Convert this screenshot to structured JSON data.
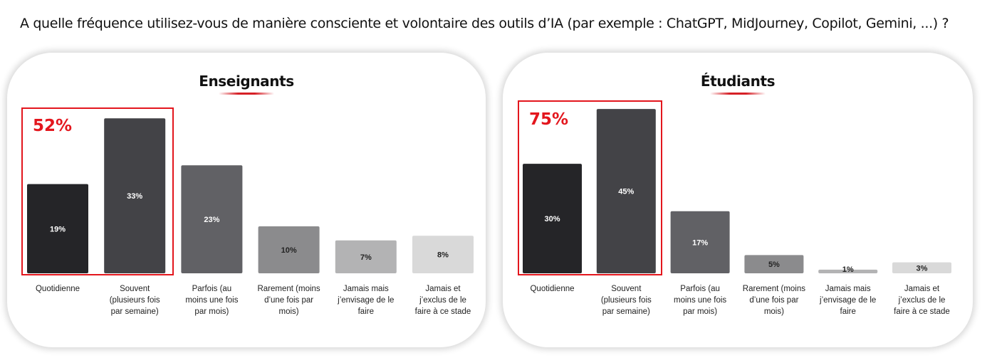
{
  "question": "A quelle fréquence utilisez-vous de manière consciente et volontaire des outils d’IA (par exemple : ChatGPT, MidJourney, Copilot, Gemini, ...) ?",
  "colors": {
    "accent": "#e3161d",
    "bars": [
      "#252528",
      "#434347",
      "#616165",
      "#8b8b8d",
      "#b3b3b4",
      "#d9d9d9"
    ]
  },
  "chart_data": [
    {
      "type": "bar",
      "title": "Enseignants",
      "categories": [
        [
          "Quotidienne"
        ],
        [
          "Souvent",
          "(plusieurs fois",
          "par semaine)"
        ],
        [
          "Parfois (au",
          "moins une fois",
          "par mois)"
        ],
        [
          "Rarement (moins",
          "d’une fois par",
          "mois)"
        ],
        [
          "Jamais mais",
          "j’envisage de le",
          "faire"
        ],
        [
          "Jamais et",
          "j’exclus de le",
          "faire à ce stade"
        ]
      ],
      "values": [
        19,
        33,
        23,
        10,
        7,
        8
      ],
      "value_labels": [
        "19%",
        "33%",
        "23%",
        "10%",
        "7%",
        "8%"
      ],
      "unit": "%",
      "highlight": {
        "label": "52%",
        "covers": [
          0,
          1
        ]
      }
    },
    {
      "type": "bar",
      "title": "Étudiants",
      "categories": [
        [
          "Quotidienne"
        ],
        [
          "Souvent",
          "(plusieurs fois",
          "par semaine)"
        ],
        [
          "Parfois (au",
          "moins une fois",
          "par mois)"
        ],
        [
          "Rarement (moins",
          "d’une fois par",
          "mois)"
        ],
        [
          "Jamais mais",
          "j’envisage de le",
          "faire"
        ],
        [
          "Jamais et",
          "j’exclus de le",
          "faire à ce stade"
        ]
      ],
      "values": [
        30,
        45,
        17,
        5,
        1,
        3
      ],
      "value_labels": [
        "30%",
        "45%",
        "17%",
        "5%",
        "1%",
        "3%"
      ],
      "unit": "%",
      "highlight": {
        "label": "75%",
        "covers": [
          0,
          1
        ]
      }
    }
  ]
}
